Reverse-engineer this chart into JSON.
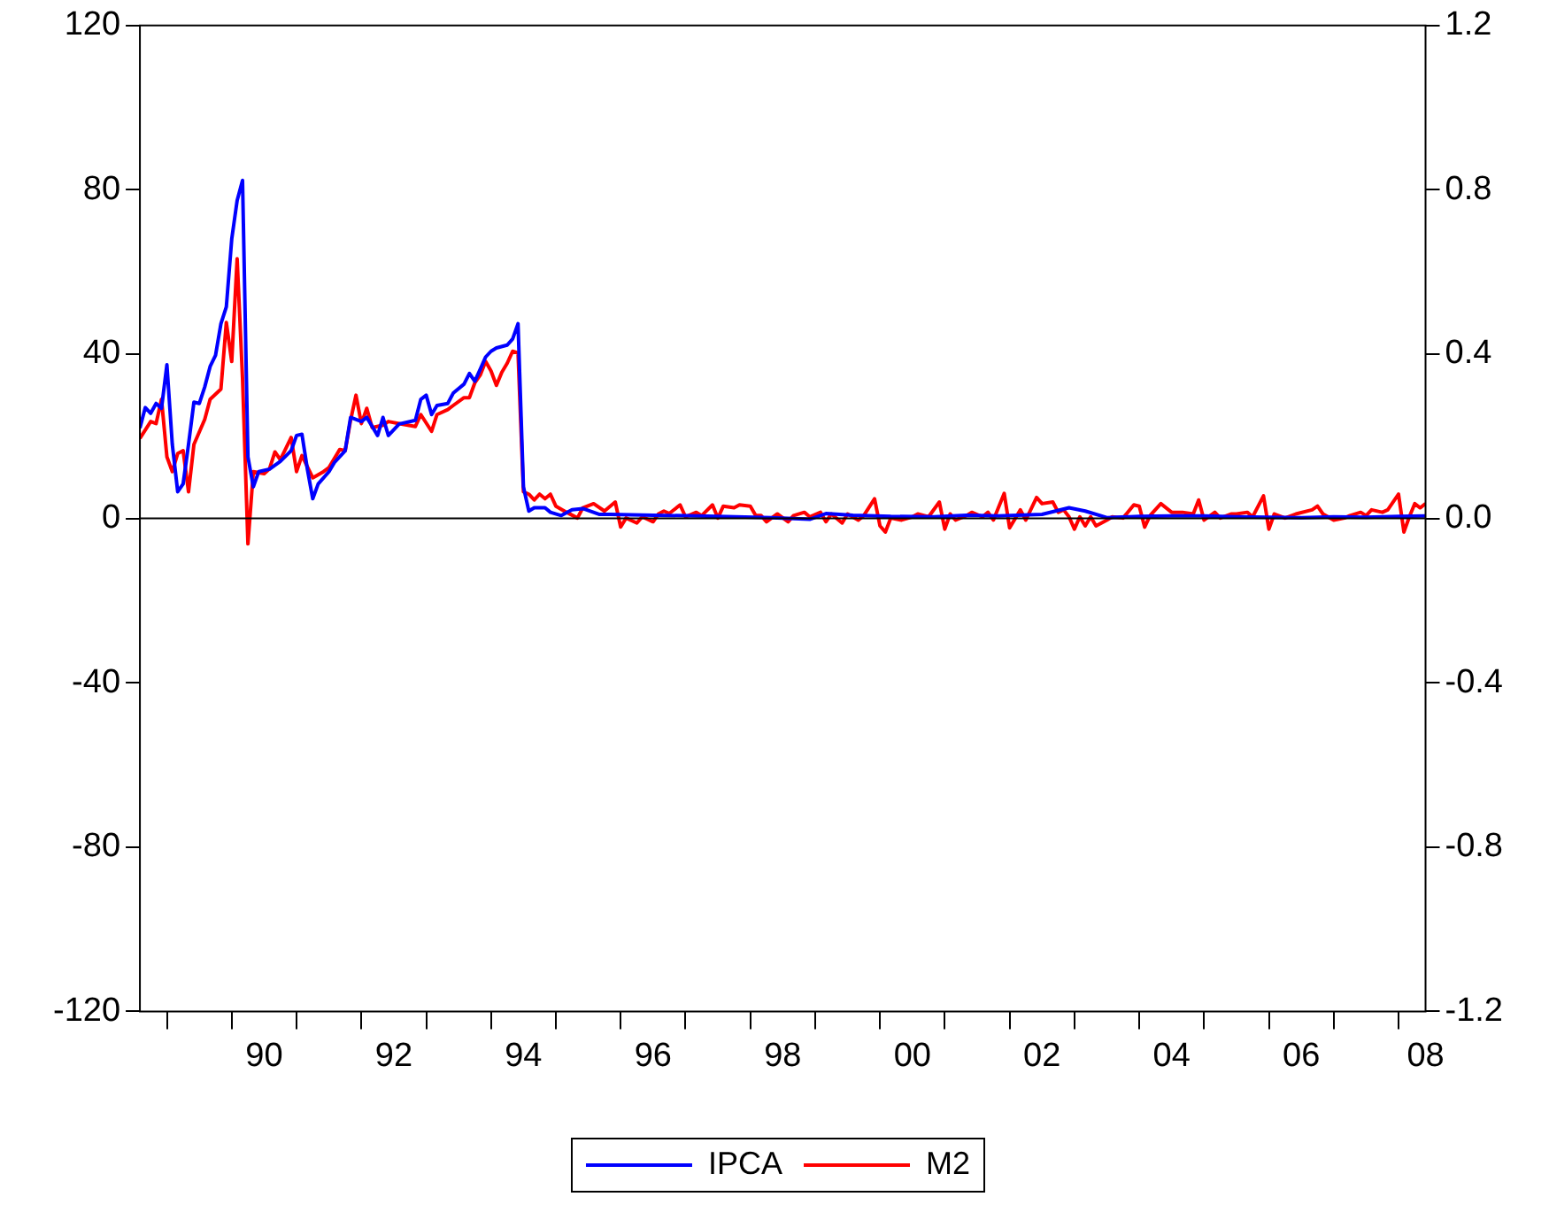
{
  "chart_data": {
    "type": "line",
    "legend": "bottom",
    "marker": "none",
    "grid": false,
    "xlim": [
      "1988-08",
      "2008-06"
    ],
    "ylim": [
      -120,
      120
    ],
    "y2lim": [
      -1.2,
      1.2
    ],
    "yticks": [
      -120,
      -80,
      -40,
      0,
      40,
      80,
      120
    ],
    "y2ticks": [
      {
        "value": -1.2,
        "label": "-1.2"
      },
      {
        "value": -0.8,
        "label": "-0.8"
      },
      {
        "value": -0.4,
        "label": "-0.4"
      },
      {
        "value": 0,
        "label": "0.0"
      },
      {
        "value": 0.4,
        "label": "0.4"
      },
      {
        "value": 0.8,
        "label": "0.8"
      },
      {
        "value": 1.2,
        "label": "1.2"
      }
    ],
    "xticks": [
      {
        "value": "1989-01",
        "label": null
      },
      {
        "value": "1990-01",
        "label": null
      },
      {
        "value": "1990-07",
        "label": "90"
      },
      {
        "value": "1991-01",
        "label": null
      },
      {
        "value": "1992-01",
        "label": null
      },
      {
        "value": "1992-07",
        "label": "92"
      },
      {
        "value": "1993-01",
        "label": null
      },
      {
        "value": "1994-01",
        "label": null
      },
      {
        "value": "1994-07",
        "label": "94"
      },
      {
        "value": "1995-01",
        "label": null
      },
      {
        "value": "1996-01",
        "label": null
      },
      {
        "value": "1996-07",
        "label": "96"
      },
      {
        "value": "1997-01",
        "label": null
      },
      {
        "value": "1998-01",
        "label": null
      },
      {
        "value": "1998-07",
        "label": "98"
      },
      {
        "value": "1999-01",
        "label": null
      },
      {
        "value": "2000-01",
        "label": null
      },
      {
        "value": "2000-07",
        "label": "00"
      },
      {
        "value": "2001-01",
        "label": null
      },
      {
        "value": "2002-01",
        "label": null
      },
      {
        "value": "2002-07",
        "label": "02"
      },
      {
        "value": "2003-01",
        "label": null
      },
      {
        "value": "2004-01",
        "label": null
      },
      {
        "value": "2004-07",
        "label": "04"
      },
      {
        "value": "2005-01",
        "label": null
      },
      {
        "value": "2006-01",
        "label": null
      },
      {
        "value": "2006-07",
        "label": "06"
      },
      {
        "value": "2007-01",
        "label": null
      },
      {
        "value": "2008-01",
        "label": null
      },
      {
        "value": "2008-06",
        "label": "08"
      }
    ],
    "ref_lines": [
      {
        "axis": "y",
        "value": 0,
        "color": "#000000"
      }
    ],
    "series": [
      {
        "name": "IPCA",
        "color": "#0000ff",
        "x": [
          "1988-08",
          "1988-09",
          "1988-10",
          "1988-11",
          "1988-12",
          "1989-01",
          "1989-02",
          "1989-03",
          "1989-04",
          "1989-05",
          "1989-06",
          "1989-07",
          "1989-08",
          "1989-09",
          "1989-10",
          "1989-11",
          "1989-12",
          "1990-01",
          "1990-02",
          "1990-03",
          "1990-04",
          "1990-05",
          "1990-06",
          "1990-08",
          "1990-10",
          "1990-12",
          "1991-01",
          "1991-02",
          "1991-03",
          "1991-04",
          "1991-05",
          "1991-07",
          "1991-08",
          "1991-10",
          "1991-11",
          "1992-01",
          "1992-02",
          "1992-04",
          "1992-05",
          "1992-06",
          "1992-08",
          "1992-11",
          "1992-12",
          "1993-01",
          "1993-02",
          "1993-03",
          "1993-05",
          "1993-06",
          "1993-08",
          "1993-09",
          "1993-10",
          "1993-11",
          "1993-12",
          "1994-01",
          "1994-02",
          "1994-04",
          "1994-05",
          "1994-06",
          "1994-07",
          "1994-08",
          "1994-09",
          "1994-11",
          "1994-12",
          "1995-02",
          "1995-04",
          "1995-06",
          "1995-09",
          "1995-11",
          "1996-07",
          "1997-07",
          "1998-05",
          "1998-12",
          "1999-03",
          "1999-08",
          "2000-03",
          "2000-11",
          "2001-05",
          "2001-11",
          "2002-07",
          "2002-12",
          "2003-03",
          "2003-07",
          "2004-01",
          "2004-07",
          "2005-01",
          "2005-07",
          "2006-01",
          "2006-07",
          "2007-01",
          "2007-07",
          "2008-01",
          "2008-06"
        ],
        "values": [
          22,
          27,
          25.6,
          28,
          26.8,
          37.4,
          18,
          6.5,
          8.4,
          18,
          28.3,
          28,
          32,
          37,
          39.7,
          47.4,
          51.5,
          68,
          77.4,
          82.3,
          15,
          7.7,
          11.4,
          12,
          13.9,
          16.5,
          20.2,
          20.5,
          12,
          4.8,
          8.4,
          11.4,
          13.6,
          16.5,
          24.6,
          23.6,
          24.6,
          20.2,
          24.6,
          20.2,
          23,
          23.9,
          29,
          30,
          25.3,
          27.5,
          28,
          30.5,
          32.7,
          35.3,
          33.4,
          36.3,
          39.3,
          40.7,
          41.5,
          42.2,
          43.7,
          47.4,
          7.7,
          1.8,
          2.6,
          2.6,
          1.5,
          0.7,
          2.1,
          2.4,
          1,
          1,
          0.8,
          0.5,
          0.2,
          -0.2,
          1.2,
          0.8,
          0.5,
          0.4,
          0.8,
          0.6,
          1,
          2.6,
          1.8,
          0.2,
          0.5,
          0.6,
          0.6,
          0.4,
          0.3,
          0.2,
          0.4,
          0.3,
          0.5,
          0.6
        ]
      },
      {
        "name": "M2",
        "color": "#ff0000",
        "axis": "y2",
        "x": [
          "1988-08",
          "1988-10",
          "1988-11",
          "1988-12",
          "1989-01",
          "1989-02",
          "1989-03",
          "1989-04",
          "1989-05",
          "1989-06",
          "1989-08",
          "1989-09",
          "1989-11",
          "1989-12",
          "1990-01",
          "1990-02",
          "1990-03",
          "1990-04",
          "1990-05",
          "1990-07",
          "1990-08",
          "1990-09",
          "1990-10",
          "1990-12",
          "1991-01",
          "1991-02",
          "1991-04",
          "1991-06",
          "1991-07",
          "1991-09",
          "1991-10",
          "1991-11",
          "1991-12",
          "1992-01",
          "1992-02",
          "1992-03",
          "1992-05",
          "1992-06",
          "1992-08",
          "1992-11",
          "1992-12",
          "1993-02",
          "1993-03",
          "1993-05",
          "1993-06",
          "1993-08",
          "1993-09",
          "1993-10",
          "1993-11",
          "1993-12",
          "1994-01",
          "1994-02",
          "1994-03",
          "1994-04",
          "1994-05",
          "1994-06",
          "1994-07",
          "1994-08",
          "1994-09",
          "1994-10",
          "1994-11",
          "1994-12",
          "1995-01",
          "1995-03",
          "1995-05",
          "1995-06",
          "1995-08",
          "1995-10",
          "1995-12",
          "1996-01",
          "1996-02",
          "1996-04",
          "1996-05",
          "1996-07",
          "1996-08",
          "1996-09",
          "1996-10",
          "1996-12",
          "1997-01",
          "1997-03",
          "1997-04",
          "1997-06",
          "1997-07",
          "1997-08",
          "1997-10",
          "1997-11",
          "1998-01",
          "1998-02",
          "1998-03",
          "1998-04",
          "1998-06",
          "1998-08",
          "1998-09",
          "1998-11",
          "1998-12",
          "1999-02",
          "1999-03",
          "1999-04",
          "1999-06",
          "1999-07",
          "1999-09",
          "1999-10",
          "1999-12",
          "2000-01",
          "2000-02",
          "2000-03",
          "2000-05",
          "2000-07",
          "2000-08",
          "2000-10",
          "2000-12",
          "2001-01",
          "2001-02",
          "2001-03",
          "2001-05",
          "2001-06",
          "2001-08",
          "2001-09",
          "2001-10",
          "2001-12",
          "2002-01",
          "2002-03",
          "2002-04",
          "2002-06",
          "2002-07",
          "2002-09",
          "2002-10",
          "2002-11",
          "2002-12",
          "2003-01",
          "2003-02",
          "2003-03",
          "2003-04",
          "2003-05",
          "2003-07",
          "2003-08",
          "2003-10",
          "2003-12",
          "2004-01",
          "2004-02",
          "2004-03",
          "2004-05",
          "2004-07",
          "2004-09",
          "2004-11",
          "2004-12",
          "2005-01",
          "2005-03",
          "2005-04",
          "2005-06",
          "2005-07",
          "2005-09",
          "2005-10",
          "2005-12",
          "2006-01",
          "2006-02",
          "2006-04",
          "2006-06",
          "2006-09",
          "2006-10",
          "2006-11",
          "2007-01",
          "2007-03",
          "2007-04",
          "2007-06",
          "2007-07",
          "2007-08",
          "2007-10",
          "2007-11",
          "2008-01",
          "2008-02",
          "2008-03",
          "2008-04",
          "2008-05",
          "2008-06"
        ],
        "values": [
          0.195,
          0.236,
          0.231,
          0.29,
          0.15,
          0.114,
          0.158,
          0.165,
          0.065,
          0.18,
          0.241,
          0.29,
          0.315,
          0.477,
          0.382,
          0.632,
          0.341,
          -0.062,
          0.114,
          0.109,
          0.121,
          0.162,
          0.143,
          0.197,
          0.114,
          0.153,
          0.099,
          0.114,
          0.124,
          0.168,
          0.165,
          0.239,
          0.3,
          0.231,
          0.268,
          0.221,
          0.227,
          0.236,
          0.231,
          0.224,
          0.253,
          0.212,
          0.253,
          0.265,
          0.275,
          0.294,
          0.294,
          0.33,
          0.349,
          0.382,
          0.359,
          0.324,
          0.356,
          0.378,
          0.407,
          0.403,
          0.065,
          0.059,
          0.045,
          0.059,
          0.048,
          0.059,
          0.03,
          0.015,
          0.001,
          0.026,
          0.036,
          0.018,
          0.04,
          -0.021,
          0.001,
          -0.011,
          0.004,
          -0.008,
          0.011,
          0.018,
          0.012,
          0.033,
          0.004,
          0.015,
          0.007,
          0.033,
          0.001,
          0.03,
          0.026,
          0.033,
          0.03,
          0.007,
          0.007,
          -0.008,
          0.011,
          -0.008,
          0.007,
          0.015,
          0.004,
          0.015,
          -0.008,
          0.011,
          -0.011,
          0.011,
          -0.004,
          0.007,
          0.048,
          -0.018,
          -0.033,
          0.001,
          -0.004,
          0.004,
          0.011,
          0.004,
          0.04,
          -0.026,
          0.011,
          -0.004,
          0.007,
          0.015,
          0.004,
          0.015,
          -0.004,
          0.061,
          -0.023,
          0.021,
          -0.004,
          0.051,
          0.036,
          0.04,
          0.015,
          0.021,
          0.004,
          -0.026,
          0.004,
          -0.018,
          0.004,
          -0.018,
          -0.004,
          0.004,
          0.001,
          0.033,
          0.03,
          -0.021,
          0.007,
          0.036,
          0.015,
          0.015,
          0.011,
          0.045,
          -0.004,
          0.015,
          0.001,
          0.011,
          0.011,
          0.015,
          0.004,
          0.055,
          -0.026,
          0.011,
          0.001,
          0.011,
          0.021,
          0.03,
          0.011,
          -0.004,
          0.001,
          0.007,
          0.015,
          0.007,
          0.021,
          0.015,
          0.021,
          0.059,
          -0.033,
          0.004,
          0.036,
          0.026,
          0.036
        ]
      }
    ]
  }
}
